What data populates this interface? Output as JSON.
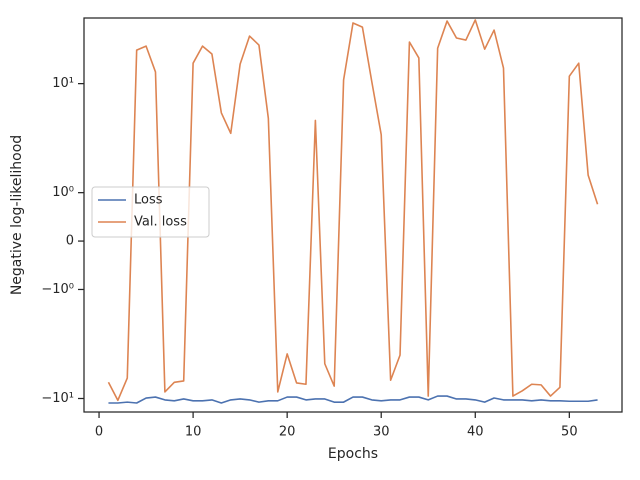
{
  "chart_data": {
    "type": "line",
    "xlabel": "Epochs",
    "ylabel": "Negative log-likelihood",
    "x": [
      1,
      2,
      3,
      4,
      5,
      6,
      7,
      8,
      9,
      10,
      11,
      12,
      13,
      14,
      15,
      16,
      17,
      18,
      19,
      20,
      21,
      22,
      23,
      24,
      25,
      26,
      27,
      28,
      29,
      30,
      31,
      32,
      33,
      34,
      35,
      36,
      37,
      38,
      39,
      40,
      41,
      42,
      43,
      44,
      45,
      46,
      47,
      48,
      49,
      50,
      51,
      52,
      53
    ],
    "series": [
      {
        "name": "Loss",
        "color": "#4c72b0",
        "values": [
          -11,
          -11,
          -10.8,
          -11,
          -9.9,
          -9.7,
          -10.3,
          -10.5,
          -10.1,
          -10.5,
          -10.5,
          -10.3,
          -11,
          -10.3,
          -10.1,
          -10.3,
          -10.8,
          -10.5,
          -10.5,
          -9.7,
          -9.7,
          -10.3,
          -10.1,
          -10.1,
          -10.8,
          -10.8,
          -9.7,
          -9.7,
          -10.3,
          -10.5,
          -10.3,
          -10.3,
          -9.7,
          -9.7,
          -10.3,
          -9.5,
          -9.5,
          -10.1,
          -10.1,
          -10.3,
          -10.8,
          -9.9,
          -10.3,
          -10.3,
          -10.3,
          -10.5,
          -10.3,
          -10.5,
          -10.5,
          -10.6,
          -10.6,
          -10.6,
          -10.3
        ]
      },
      {
        "name": "Val. loss",
        "color": "#dd8452",
        "values": [
          -7.1,
          -10.4,
          -6.5,
          20.3,
          22.1,
          12.8,
          -8.7,
          -7.1,
          -6.9,
          15.4,
          22.1,
          18.7,
          5.4,
          3.5,
          15.1,
          27.3,
          22.6,
          4.8,
          -8.7,
          -3.9,
          -7.2,
          -7.4,
          4.6,
          -4.8,
          -7.7,
          10.8,
          36,
          33,
          10.4,
          3.4,
          -6.8,
          -4.0,
          24.1,
          17.2,
          -9.5,
          21.1,
          37.5,
          26.2,
          25.1,
          38.4,
          20.7,
          31,
          13.9,
          -9.5,
          -8.5,
          -7.4,
          -7.5,
          -9.5,
          -7.9,
          11.7,
          15.4,
          1.45,
          0.76
        ]
      }
    ],
    "xlim": [
      -1.6,
      55.6
    ],
    "xticks": [
      0,
      10,
      20,
      30,
      40,
      50
    ],
    "yscale": "symlog",
    "linthresh": 1,
    "linscale": 0.444,
    "ylim": [
      -13.3,
      40
    ],
    "yticks": [
      {
        "value": -10,
        "label": "−10¹"
      },
      {
        "value": -1,
        "label": "−10⁰"
      },
      0,
      {
        "value": 1,
        "label": "10⁰"
      },
      {
        "value": 10,
        "label": "10¹"
      }
    ],
    "legend": "center left"
  }
}
